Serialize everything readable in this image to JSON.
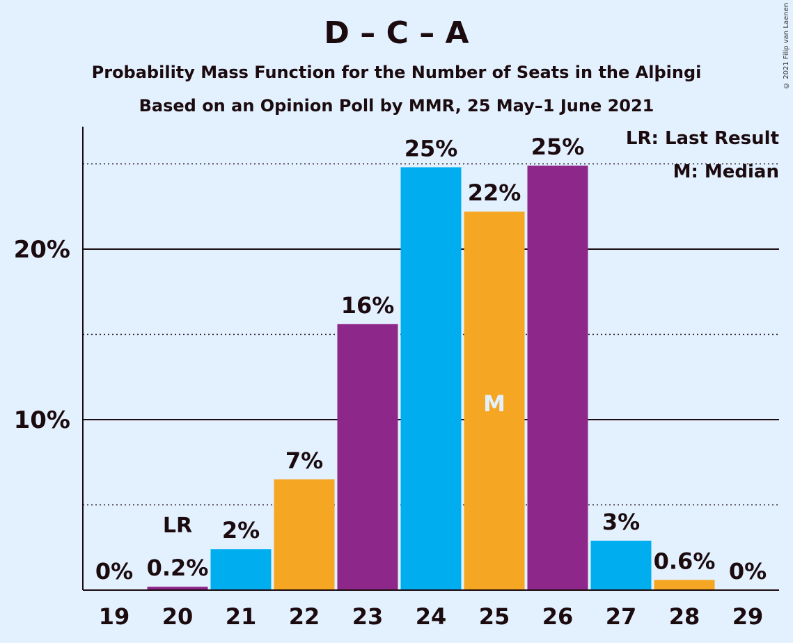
{
  "title": "D – C – A",
  "subtitle": "Probability Mass Function for the Number of Seats in the Alþingi",
  "subtitle2": "Based on an Opinion Poll by MMR, 25 May–1 June 2021",
  "copyright": "© 2021 Filip van Laenen",
  "legend": {
    "last_result": "LR: Last Result",
    "median": "M: Median"
  },
  "colors": {
    "background": "#e3f1ff",
    "blue": "#00aeef",
    "orange": "#f5a623",
    "purple": "#8e278a",
    "text": "#1b0a0e",
    "median_label": "#e3f1ff"
  },
  "chart_data": {
    "type": "bar",
    "categories": [
      "19",
      "20",
      "21",
      "22",
      "23",
      "24",
      "25",
      "26",
      "27",
      "28",
      "29"
    ],
    "values": [
      0,
      0.2,
      2.4,
      6.5,
      15.6,
      24.8,
      22.2,
      24.9,
      2.9,
      0.6,
      0
    ],
    "labels": [
      "0%",
      "0.2%",
      "2%",
      "7%",
      "16%",
      "25%",
      "22%",
      "25%",
      "3%",
      "0.6%",
      "0%"
    ],
    "bar_colors": [
      "blue",
      "purple",
      "blue",
      "orange",
      "purple",
      "blue",
      "orange",
      "purple",
      "blue",
      "orange",
      "blue"
    ],
    "ylim": [
      0,
      27
    ],
    "yticks": [
      10,
      20
    ],
    "ytick_labels": [
      "10%",
      "20%"
    ],
    "minor_gridlines": [
      5,
      15,
      25
    ],
    "last_result_category": "20",
    "last_result_label": "LR",
    "median_category": "25",
    "median_label": "M",
    "legend_position": "top-right",
    "xlabel": "",
    "ylabel": ""
  }
}
